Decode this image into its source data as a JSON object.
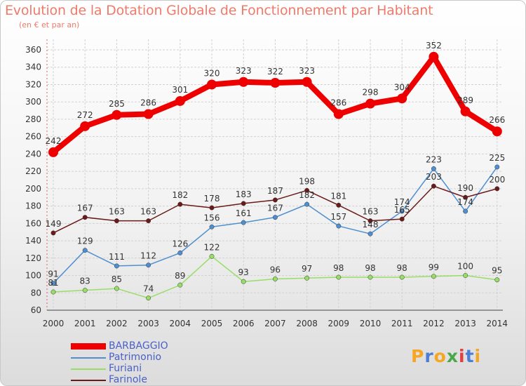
{
  "title": "Evolution de la Dotation Globale de Fonctionnement par Habitant",
  "subtitle": "(en € et par an)",
  "logo": {
    "text": "Proxiti",
    "letter_colors": [
      "#f5a623",
      "#4a7fd4",
      "#f5a623",
      "#4aa84a",
      "#e04040",
      "#4a7fd4",
      "#f5a623"
    ]
  },
  "chart_data": {
    "type": "line",
    "title": "Evolution de la Dotation Globale de Fonctionnement par Habitant",
    "subtitle": "(en € et par an)",
    "xlabel": "",
    "ylabel": "",
    "x": [
      "2000",
      "2001",
      "2002",
      "2003",
      "2004",
      "2005",
      "2006",
      "2007",
      "2008",
      "2009",
      "2010",
      "2011",
      "2012",
      "2013",
      "2014"
    ],
    "ylim": [
      60,
      360
    ],
    "yticks": [
      60,
      80,
      100,
      120,
      140,
      160,
      180,
      200,
      220,
      240,
      260,
      280,
      300,
      320,
      340,
      360
    ],
    "grid": true,
    "legend": "bottom-left",
    "series": [
      {
        "name": "BARBAGGIO",
        "color": "#ee0000",
        "bold": true,
        "values": [
          242,
          272,
          285,
          286,
          301,
          320,
          323,
          322,
          323,
          286,
          298,
          304,
          352,
          289,
          266
        ]
      },
      {
        "name": "Patrimonio",
        "color": "#4f8fcf",
        "values": [
          91,
          129,
          111,
          112,
          126,
          156,
          161,
          167,
          182,
          157,
          148,
          174,
          223,
          174,
          225
        ]
      },
      {
        "name": "Furiani",
        "color": "#99dd66",
        "values": [
          81,
          83,
          85,
          74,
          89,
          122,
          93,
          96,
          97,
          98,
          98,
          98,
          99,
          100,
          95
        ]
      },
      {
        "name": "Farinole",
        "color": "#6b1a1a",
        "values": [
          149,
          167,
          163,
          163,
          182,
          178,
          183,
          187,
          198,
          181,
          163,
          165,
          203,
          190,
          200
        ]
      }
    ],
    "data_labels": [
      {
        "series": "BARBAGGIO",
        "labels": [
          "242",
          "272",
          "285",
          "286",
          "301",
          "320",
          "323",
          "322",
          "323",
          "286",
          "298",
          "304",
          "352",
          "289",
          "266"
        ]
      },
      {
        "series": "Patrimonio",
        "labels": [
          "91",
          "129",
          "111",
          "112",
          "126",
          "156",
          "161",
          "167",
          "182",
          "157",
          "148",
          "174",
          "223",
          "174",
          "225"
        ]
      },
      {
        "series": "Furiani",
        "labels": [
          "81",
          "83",
          "85",
          "74",
          "89",
          "122",
          "93",
          "96",
          "97",
          "98",
          "98",
          "98",
          "99",
          "100",
          "95"
        ]
      },
      {
        "series": "Farinole",
        "labels": [
          "149",
          "167",
          "163",
          "163",
          "182",
          "178",
          "183",
          "187",
          "198",
          "181",
          "163",
          "165",
          "203",
          "190",
          "200"
        ]
      }
    ]
  }
}
